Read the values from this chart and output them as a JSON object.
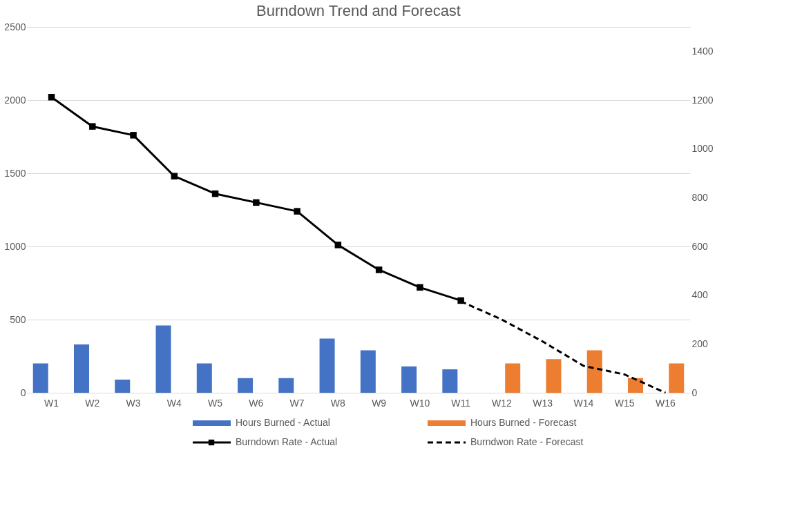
{
  "chart_data": {
    "type": "bar",
    "title": "Burndown Trend and Forecast",
    "categories": [
      "W1",
      "W2",
      "W3",
      "W4",
      "W5",
      "W6",
      "W7",
      "W8",
      "W9",
      "W10",
      "W11",
      "W12",
      "W13",
      "W14",
      "W15",
      "W16"
    ],
    "series": [
      {
        "name": "Hours Burned - Actual",
        "color": "#4472c4",
        "values": [
          200,
          330,
          90,
          460,
          200,
          100,
          100,
          370,
          290,
          180,
          160,
          null,
          null,
          null,
          null,
          null
        ]
      },
      {
        "name": "Hours Burned - Forecast",
        "color": "#ed7d31",
        "values": [
          null,
          null,
          null,
          null,
          null,
          null,
          null,
          null,
          null,
          null,
          null,
          200,
          230,
          290,
          100,
          200
        ]
      },
      {
        "name": "Burndown Rate - Actual",
        "type": "line",
        "color": "#000000",
        "marker": "square",
        "line_style": "solid",
        "values": [
          2020,
          1820,
          1760,
          1480,
          1360,
          1300,
          1240,
          1010,
          840,
          720,
          630,
          null,
          null,
          null,
          null,
          null
        ]
      },
      {
        "name": "Burndwon Rate - Forecast",
        "type": "line",
        "axis": "y2",
        "color": "#000000",
        "marker": "none",
        "line_style": "dashed",
        "values": [
          null,
          null,
          null,
          null,
          null,
          null,
          null,
          null,
          null,
          null,
          375,
          300,
          210,
          110,
          75,
          0
        ]
      }
    ],
    "ylim": [
      0,
      2500
    ],
    "yticks": [
      0,
      500,
      1000,
      1500,
      2000,
      2500
    ],
    "y2lim": [
      0,
      1500
    ],
    "y2ticks": [
      0,
      200,
      400,
      600,
      800,
      1000,
      1200,
      1400
    ],
    "grid": "y",
    "legend": "bottom"
  }
}
